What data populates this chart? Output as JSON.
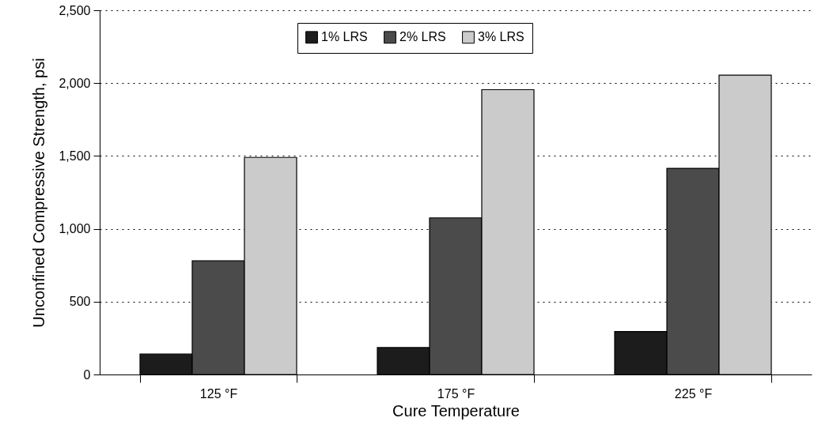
{
  "chart_data": {
    "type": "bar",
    "xlabel": "Cure Temperature",
    "ylabel": "Unconfined Compressive Strength, psi",
    "categories": [
      "125 °F",
      "175 °F",
      "225 °F"
    ],
    "series": [
      {
        "name": "1% LRS",
        "color": "#1c1c1c",
        "values": [
          140,
          185,
          295
        ]
      },
      {
        "name": "2% LRS",
        "color": "#4b4b4b",
        "values": [
          780,
          1075,
          1415
        ]
      },
      {
        "name": "3% LRS",
        "color": "#cbcbcb",
        "values": [
          1490,
          1955,
          2055
        ]
      }
    ],
    "ylim": [
      0,
      2500
    ],
    "yticks": [
      {
        "value": 0,
        "label": "0"
      },
      {
        "value": 500,
        "label": "500"
      },
      {
        "value": 1000,
        "label": "1,000"
      },
      {
        "value": 1500,
        "label": "1,500"
      },
      {
        "value": 2000,
        "label": "2,000"
      },
      {
        "value": 2500,
        "label": "2,500"
      }
    ],
    "grid": "y",
    "legend": "top"
  }
}
